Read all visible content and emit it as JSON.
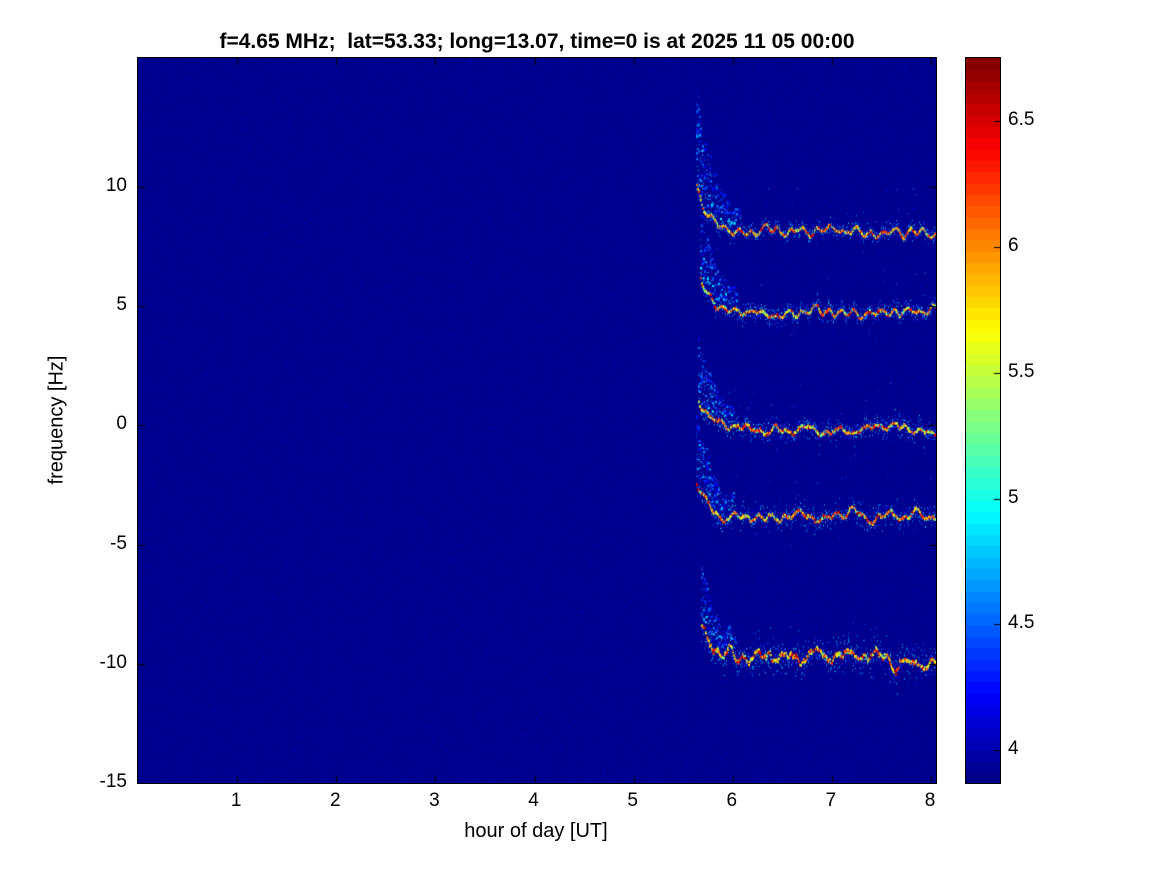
{
  "chart_data": {
    "type": "heatmap",
    "subtype": "doppler-spectrogram",
    "title": "f=4.65 MHz;  lat=53.33; long=13.07, time=0 is at 2025 11 05 00:00",
    "xlabel": "hour of day [UT]",
    "ylabel": "frequency [Hz]",
    "xlim": [
      0,
      8.05
    ],
    "ylim": [
      -15,
      15.4
    ],
    "xticks": [
      1,
      2,
      3,
      4,
      5,
      6,
      7,
      8
    ],
    "yticks": [
      -15,
      -10,
      -5,
      0,
      5,
      10
    ],
    "grid": false,
    "legend": false,
    "colormap": "jet",
    "background_value": 3.92,
    "colorbar": {
      "position": "right",
      "range": [
        3.87,
        6.75
      ],
      "ticks": [
        4,
        4.5,
        5,
        5.5,
        6,
        6.5
      ]
    },
    "signal": {
      "end_hour": 8.05,
      "description": "Quiet dark-blue background until about 5.6 UT, then five noisy horizontal Doppler traces, each beginning with a descending blue onset plume and continuing to 8 UT",
      "traces": [
        {
          "name": "sideband-plus-2",
          "center_hz": 8.15,
          "onset_hour": 5.63,
          "onset_top_hz": 12.2,
          "spread_hz": 0.45,
          "peak_value": 6.6
        },
        {
          "name": "sideband-plus-1",
          "center_hz": 4.75,
          "onset_hour": 5.67,
          "onset_top_hz": 7.6,
          "spread_hz": 0.5,
          "peak_value": 6.7
        },
        {
          "name": "carrier",
          "center_hz": -0.15,
          "onset_hour": 5.65,
          "onset_top_hz": 2.4,
          "spread_hz": 0.6,
          "peak_value": 6.7
        },
        {
          "name": "sideband-minus-1",
          "center_hz": -3.75,
          "onset_hour": 5.63,
          "onset_top_hz": -0.9,
          "spread_hz": 0.65,
          "peak_value": 6.7
        },
        {
          "name": "sideband-minus-2",
          "center_hz": -9.7,
          "onset_hour": 5.68,
          "onset_top_hz": -7.3,
          "spread_hz": 1.0,
          "peak_value": 6.5
        }
      ]
    }
  }
}
